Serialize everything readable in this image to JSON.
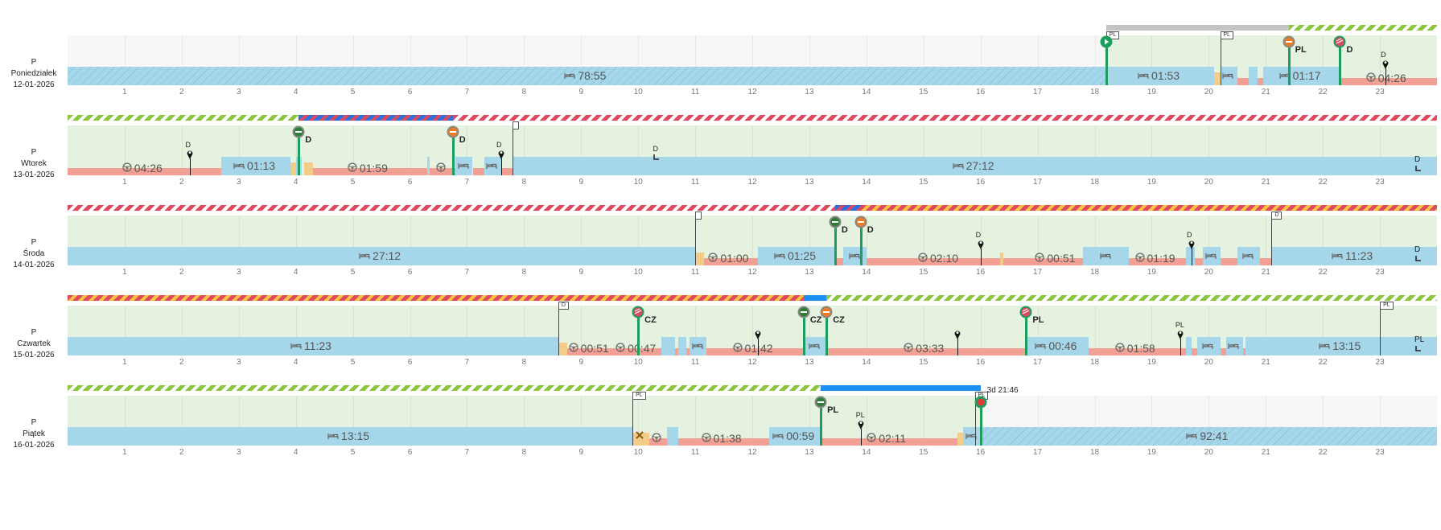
{
  "colors": {
    "rest": "#a6d6ea",
    "drive": "#f2a093",
    "work": "#f2cc88",
    "bg_active": "#e6f2e0",
    "bg_inactive": "#f7f7f7",
    "pin_green": "#1e9e5e",
    "stripe_green": "#8cc63f",
    "stripe_red": "#e0485e",
    "stripe_yellow": "#f5c542",
    "stripe_blue": "#2f6fde",
    "bar_blue": "#1d8ff0",
    "bar_grey": "#c4c4c4"
  },
  "hours": [
    "1",
    "2",
    "3",
    "4",
    "5",
    "6",
    "7",
    "8",
    "9",
    "10",
    "11",
    "12",
    "13",
    "14",
    "15",
    "16",
    "17",
    "18",
    "19",
    "20",
    "21",
    "22",
    "23"
  ],
  "days": [
    {
      "type": "P",
      "name": "Poniedziałek",
      "date": "12-01-2026",
      "bg_inactive": [
        [
          0,
          18.2
        ]
      ],
      "bars": [
        {
          "type": "grey",
          "from": 18.2,
          "to": 21.4
        },
        {
          "type": "stripe-green",
          "from": 21.4,
          "to": 24
        }
      ],
      "segments": [
        {
          "type": "rest-hatched",
          "from": 0,
          "to": 18.2,
          "icon": "bed-icon",
          "label": "78:55"
        },
        {
          "type": "rest",
          "from": 18.2,
          "to": 20.1,
          "icon": "bed-icon",
          "label": "01:53"
        },
        {
          "type": "work",
          "from": 20.1,
          "to": 20.2
        },
        {
          "type": "rest",
          "from": 20.2,
          "to": 20.5,
          "icon": "bed-icon"
        },
        {
          "type": "drive",
          "from": 20.5,
          "to": 20.7
        },
        {
          "type": "rest",
          "from": 20.7,
          "to": 20.85
        },
        {
          "type": "drive",
          "from": 20.85,
          "to": 20.95
        },
        {
          "type": "rest",
          "from": 20.95,
          "to": 22.3,
          "icon": "bed-icon",
          "label": "01:17"
        },
        {
          "type": "drive",
          "from": 22.3,
          "to": 24,
          "icon": "wheel-icon",
          "label": "04:26"
        }
      ],
      "pins": [
        {
          "kind": "start",
          "at": 18.2
        },
        {
          "kind": "border-orange",
          "at": 21.4,
          "label": "PL"
        },
        {
          "kind": "border-red",
          "at": 22.3,
          "label": "D"
        },
        {
          "kind": "map",
          "at": 23.1,
          "label": "D"
        }
      ],
      "flags": [
        {
          "at": 18.2,
          "label": "PL"
        },
        {
          "at": 20.2,
          "label": "PL"
        }
      ],
      "end_text": ""
    },
    {
      "type": "P",
      "name": "Wtorek",
      "date": "13-01-2026",
      "bg_inactive": [],
      "bars": [
        {
          "type": "stripe-green",
          "from": 0,
          "to": 4.05
        },
        {
          "type": "stripe-blue-red",
          "from": 4.05,
          "to": 6.75
        },
        {
          "type": "stripe-red",
          "from": 6.75,
          "to": 24
        }
      ],
      "segments": [
        {
          "type": "drive",
          "from": 0,
          "to": 2.7,
          "icon": "wheel-icon",
          "label": "04:26"
        },
        {
          "type": "rest",
          "from": 2.7,
          "to": 3.9,
          "icon": "bed-icon",
          "label": "01:13"
        },
        {
          "type": "work",
          "from": 3.9,
          "to": 4.0
        },
        {
          "type": "rest",
          "from": 4.0,
          "to": 4.1
        },
        {
          "type": "work",
          "from": 4.15,
          "to": 4.3
        },
        {
          "type": "drive",
          "from": 4.3,
          "to": 6.3,
          "icon": "wheel-icon",
          "label": "01:59"
        },
        {
          "type": "rest",
          "from": 6.3,
          "to": 6.35
        },
        {
          "type": "drive",
          "from": 6.35,
          "to": 6.8,
          "icon": "wheel-icon"
        },
        {
          "type": "rest",
          "from": 6.8,
          "to": 7.1,
          "icon": "bed-icon"
        },
        {
          "type": "drive",
          "from": 7.1,
          "to": 7.3
        },
        {
          "type": "rest",
          "from": 7.3,
          "to": 7.6,
          "icon": "bed-icon"
        },
        {
          "type": "drive",
          "from": 7.6,
          "to": 7.8
        },
        {
          "type": "rest",
          "from": 7.8,
          "to": 24,
          "icon": "bed-icon",
          "label": "27:12"
        }
      ],
      "pins": [
        {
          "kind": "border-green",
          "at": 4.05,
          "label": "D"
        },
        {
          "kind": "border-orange",
          "at": 6.75,
          "label": "D"
        },
        {
          "kind": "map",
          "at": 2.15,
          "label": "D"
        },
        {
          "kind": "map",
          "at": 7.6,
          "label": "D"
        }
      ],
      "flags": [
        {
          "at": 7.8,
          "label": ""
        }
      ],
      "end_text": "D",
      "mid_marker": {
        "at": 10.3,
        "label": "D"
      }
    },
    {
      "type": "P",
      "name": "Środa",
      "date": "14-01-2026",
      "bg_inactive": [],
      "bars": [
        {
          "type": "stripe-red",
          "from": 0,
          "to": 13.45
        },
        {
          "type": "stripe-blue-red",
          "from": 13.45,
          "to": 13.9
        },
        {
          "type": "stripe-red-yellow",
          "from": 13.9,
          "to": 24
        }
      ],
      "segments": [
        {
          "type": "rest",
          "from": 0,
          "to": 11.0,
          "icon": "bed-icon",
          "label": "27:12"
        },
        {
          "type": "work",
          "from": 11.0,
          "to": 11.15
        },
        {
          "type": "drive",
          "from": 11.15,
          "to": 12.1,
          "icon": "wheel-icon",
          "label": "01:00"
        },
        {
          "type": "rest",
          "from": 12.1,
          "to": 13.45,
          "icon": "bed-icon",
          "label": "01:25"
        },
        {
          "type": "drive",
          "from": 13.45,
          "to": 13.6
        },
        {
          "type": "rest",
          "from": 13.6,
          "to": 14.0,
          "icon": "bed-icon"
        },
        {
          "type": "drive",
          "from": 14.0,
          "to": 14.2
        },
        {
          "type": "drive",
          "from": 14.2,
          "to": 16.4,
          "icon": "wheel-icon",
          "label": "02:10"
        },
        {
          "type": "work",
          "from": 16.35,
          "to": 16.4
        },
        {
          "type": "drive",
          "from": 16.4,
          "to": 16.9
        },
        {
          "type": "drive",
          "from": 16.9,
          "to": 17.8,
          "icon": "wheel-icon",
          "label": "00:51"
        },
        {
          "type": "rest",
          "from": 17.8,
          "to": 18.6,
          "icon": "bed-icon"
        },
        {
          "type": "drive",
          "from": 18.6,
          "to": 19.6,
          "icon": "wheel-icon",
          "label": "01:19"
        },
        {
          "type": "rest",
          "from": 19.6,
          "to": 19.75
        },
        {
          "type": "drive",
          "from": 19.75,
          "to": 19.9
        },
        {
          "type": "rest",
          "from": 19.9,
          "to": 20.2,
          "icon": "bed-icon"
        },
        {
          "type": "drive",
          "from": 20.2,
          "to": 20.5
        },
        {
          "type": "rest",
          "from": 20.5,
          "to": 20.9,
          "icon": "bed-icon"
        },
        {
          "type": "drive",
          "from": 20.9,
          "to": 21.1
        },
        {
          "type": "rest",
          "from": 21.1,
          "to": 24,
          "icon": "bed-icon",
          "label": "11:23"
        }
      ],
      "pins": [
        {
          "kind": "border-green",
          "at": 13.45,
          "label": "D"
        },
        {
          "kind": "border-orange",
          "at": 13.9,
          "label": "D"
        },
        {
          "kind": "map",
          "at": 16.0,
          "label": "D"
        },
        {
          "kind": "map",
          "at": 19.7,
          "label": "D"
        }
      ],
      "flags": [
        {
          "at": 11.0,
          "label": ""
        },
        {
          "at": 21.1,
          "label": "D"
        }
      ],
      "end_text": "D"
    },
    {
      "type": "P",
      "name": "Czwartek",
      "date": "15-01-2026",
      "bg_inactive": [],
      "bars": [
        {
          "type": "stripe-red-yellow",
          "from": 0,
          "to": 12.9
        },
        {
          "type": "blue",
          "from": 12.9,
          "to": 13.3
        },
        {
          "type": "stripe-green",
          "from": 13.3,
          "to": 24
        }
      ],
      "segments": [
        {
          "type": "rest",
          "from": 0,
          "to": 8.6,
          "icon": "bed-icon",
          "label": "11:23"
        },
        {
          "type": "work",
          "from": 8.6,
          "to": 8.75
        },
        {
          "type": "drive",
          "from": 8.75,
          "to": 9.6,
          "icon": "wheel-icon",
          "label": "00:51"
        },
        {
          "type": "drive",
          "from": 9.6,
          "to": 10.4,
          "icon": "wheel-icon",
          "label": "00:47"
        },
        {
          "type": "rest",
          "from": 10.4,
          "to": 10.65
        },
        {
          "type": "drive",
          "from": 10.65,
          "to": 10.7
        },
        {
          "type": "rest",
          "from": 10.7,
          "to": 10.85
        },
        {
          "type": "drive",
          "from": 10.85,
          "to": 10.9
        },
        {
          "type": "rest",
          "from": 10.9,
          "to": 11.2,
          "icon": "bed-icon"
        },
        {
          "type": "drive",
          "from": 11.2,
          "to": 12.9,
          "icon": "wheel-icon",
          "label": "01:42"
        },
        {
          "type": "rest",
          "from": 12.9,
          "to": 13.3,
          "icon": "bed-icon"
        },
        {
          "type": "drive",
          "from": 13.3,
          "to": 16.8,
          "icon": "wheel-icon",
          "label": "03:33"
        },
        {
          "type": "rest",
          "from": 16.8,
          "to": 17.9,
          "icon": "bed-icon",
          "label": "00:46"
        },
        {
          "type": "drive",
          "from": 17.9,
          "to": 19.6,
          "icon": "wheel-icon",
          "label": "01:58"
        },
        {
          "type": "rest",
          "from": 19.6,
          "to": 19.7
        },
        {
          "type": "drive",
          "from": 19.7,
          "to": 19.8
        },
        {
          "type": "rest",
          "from": 19.8,
          "to": 20.2,
          "icon": "bed-icon"
        },
        {
          "type": "drive",
          "from": 20.2,
          "to": 20.3
        },
        {
          "type": "rest",
          "from": 20.3,
          "to": 20.6,
          "icon": "bed-icon"
        },
        {
          "type": "drive",
          "from": 20.6,
          "to": 20.65
        },
        {
          "type": "rest",
          "from": 20.65,
          "to": 24,
          "icon": "bed-icon",
          "label": "13:15"
        }
      ],
      "pins": [
        {
          "kind": "border-red",
          "at": 10.0,
          "label": "CZ"
        },
        {
          "kind": "border-green",
          "at": 12.9,
          "label": "CZ"
        },
        {
          "kind": "border-orange",
          "at": 13.3,
          "label": "CZ"
        },
        {
          "kind": "border-red",
          "at": 16.8,
          "label": "PL"
        },
        {
          "kind": "map",
          "at": 12.1,
          "label": ""
        },
        {
          "kind": "map",
          "at": 15.6,
          "label": ""
        },
        {
          "kind": "map",
          "at": 19.5,
          "label": "PL"
        }
      ],
      "flags": [
        {
          "at": 8.6,
          "label": "D"
        },
        {
          "at": 23.0,
          "label": "PL"
        }
      ],
      "end_text": "PL"
    },
    {
      "type": "P",
      "name": "Piątek",
      "date": "16-01-2026",
      "bg_inactive": [
        [
          16.0,
          24
        ]
      ],
      "bars": [
        {
          "type": "stripe-green",
          "from": 0,
          "to": 13.2
        },
        {
          "type": "blue",
          "from": 13.2,
          "to": 16.0
        }
      ],
      "segments": [
        {
          "type": "rest",
          "from": 0,
          "to": 9.9,
          "icon": "bed-icon",
          "label": "13:15"
        },
        {
          "type": "work",
          "from": 9.9,
          "to": 10.2,
          "icon": "tools-icon"
        },
        {
          "type": "drive",
          "from": 10.2,
          "to": 10.5,
          "icon": "wheel-icon"
        },
        {
          "type": "rest",
          "from": 10.5,
          "to": 10.7
        },
        {
          "type": "drive",
          "from": 10.7,
          "to": 12.3,
          "icon": "wheel-icon",
          "label": "01:38"
        },
        {
          "type": "rest",
          "from": 12.3,
          "to": 13.2,
          "icon": "bed-icon",
          "label": "00:59"
        },
        {
          "type": "drive",
          "from": 13.2,
          "to": 15.6,
          "icon": "wheel-icon",
          "label": "02:11"
        },
        {
          "type": "work",
          "from": 15.6,
          "to": 15.7
        },
        {
          "type": "rest",
          "from": 15.7,
          "to": 16.0,
          "icon": "bed-icon"
        },
        {
          "type": "rest-hatched",
          "from": 16.0,
          "to": 24,
          "icon": "bed-icon",
          "label": "92:41"
        }
      ],
      "pins": [
        {
          "kind": "border-green",
          "at": 13.2,
          "label": "PL"
        },
        {
          "kind": "map",
          "at": 13.9,
          "label": "PL"
        },
        {
          "kind": "end",
          "at": 16.0,
          "label": "3d 21:46"
        }
      ],
      "flags": [
        {
          "at": 9.9,
          "label": "PL"
        },
        {
          "at": 15.9,
          "label": "PL"
        }
      ],
      "end_text": ""
    }
  ]
}
